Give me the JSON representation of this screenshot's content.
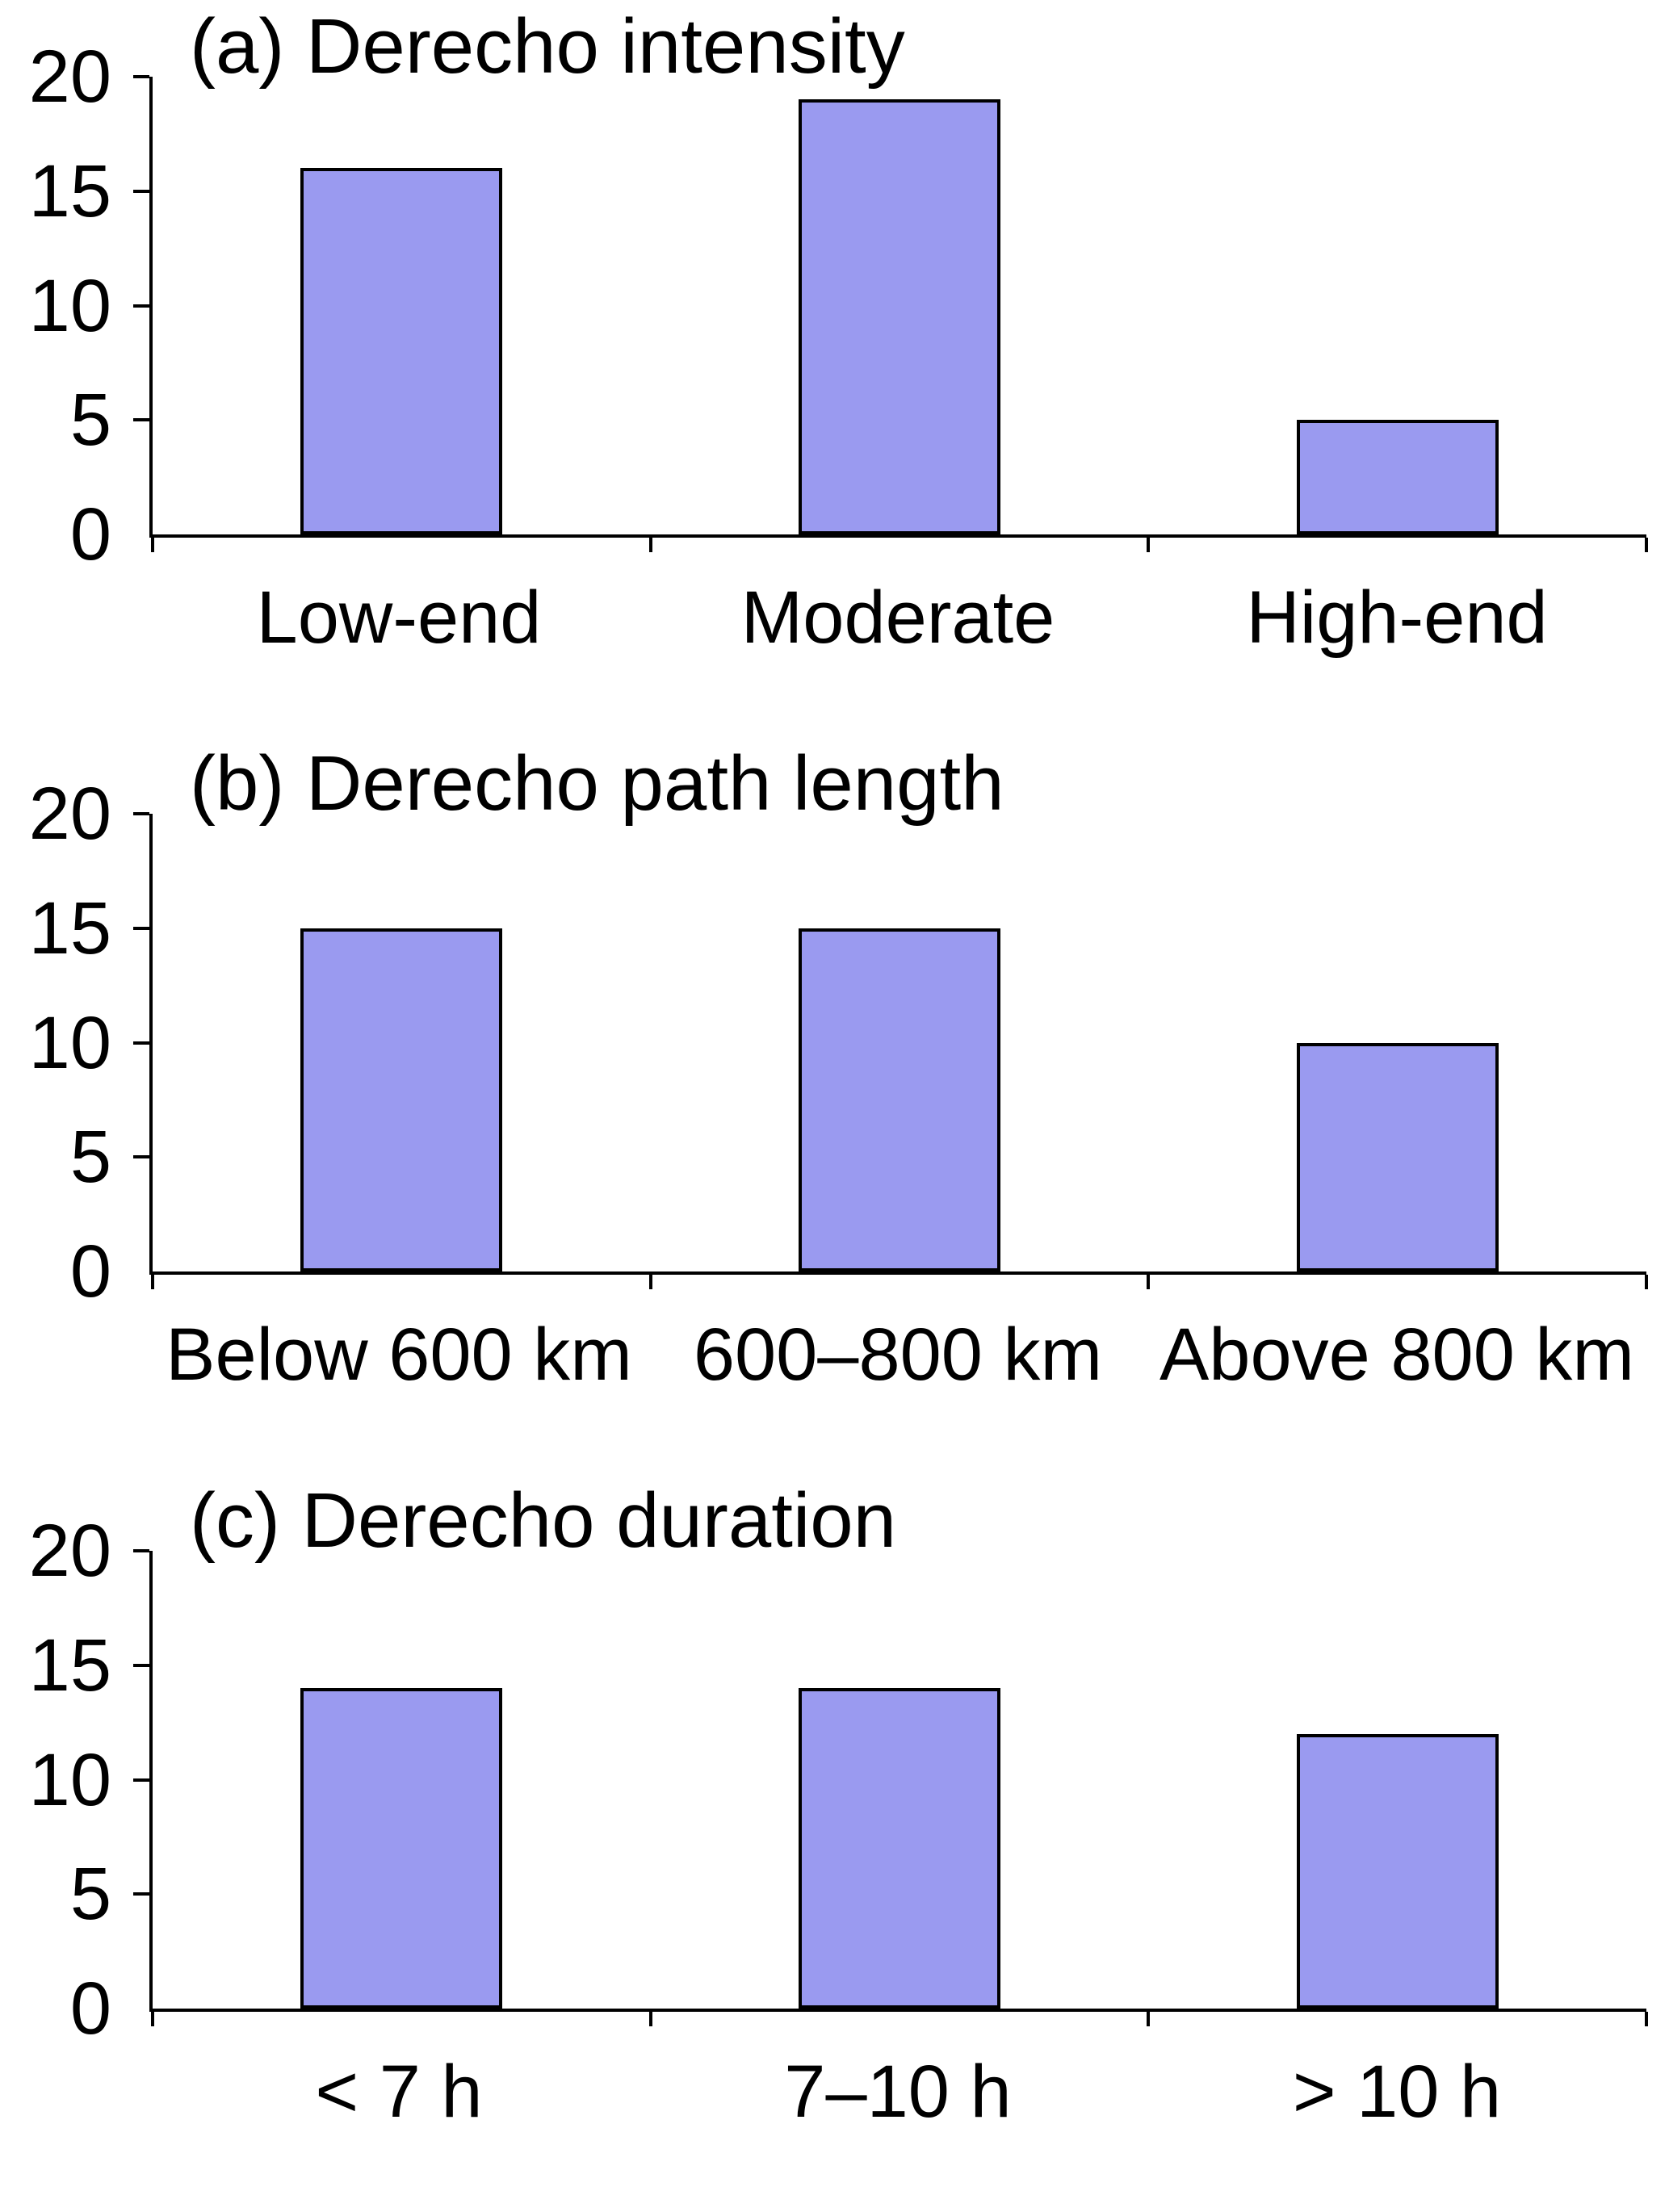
{
  "colors": {
    "bar_fill": "#9a9af0",
    "bar_border": "#000000",
    "axis": "#000000",
    "background": "#ffffff"
  },
  "chart_data": [
    {
      "type": "bar",
      "title": "(a) Derecho intensity",
      "categories": [
        "Low-end",
        "Moderate",
        "High-end"
      ],
      "values": [
        16,
        19,
        5
      ],
      "xlabel": "",
      "ylabel": "",
      "ylim": [
        0,
        20
      ],
      "yticks": [
        0,
        5,
        10,
        15,
        20
      ],
      "grid": false,
      "legend": "none"
    },
    {
      "type": "bar",
      "title": "(b) Derecho path length",
      "categories": [
        "Below 600 km",
        "600–800 km",
        "Above 800 km"
      ],
      "values": [
        15,
        15,
        10
      ],
      "xlabel": "",
      "ylabel": "",
      "ylim": [
        0,
        20
      ],
      "yticks": [
        0,
        5,
        10,
        15,
        20
      ],
      "grid": false,
      "legend": "none"
    },
    {
      "type": "bar",
      "title": "(c) Derecho duration",
      "categories": [
        "< 7 h",
        "7–10 h",
        "> 10 h"
      ],
      "values": [
        14,
        14,
        12
      ],
      "xlabel": "",
      "ylabel": "",
      "ylim": [
        0,
        20
      ],
      "yticks": [
        0,
        5,
        10,
        15,
        20
      ],
      "grid": false,
      "legend": "none"
    }
  ]
}
